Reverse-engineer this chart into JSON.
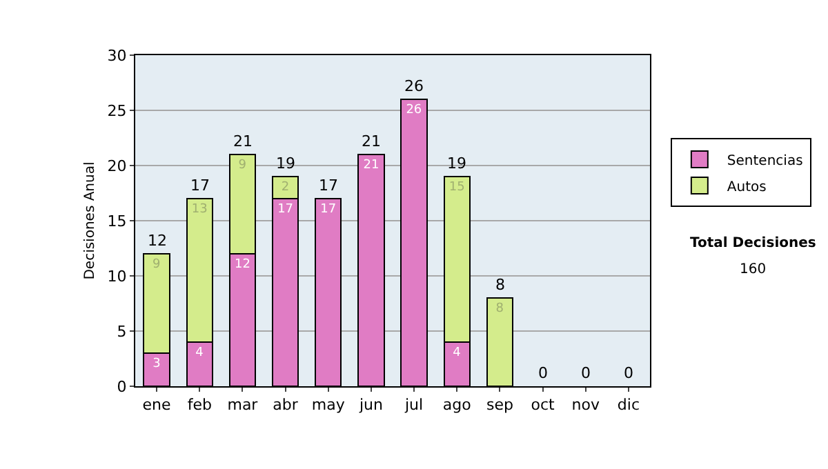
{
  "chart_data": {
    "type": "bar",
    "stacked": true,
    "ylabel": "Decisiones Anual",
    "categories": [
      "ene",
      "feb",
      "mar",
      "abr",
      "may",
      "jun",
      "jul",
      "ago",
      "sep",
      "oct",
      "nov",
      "dic"
    ],
    "series": [
      {
        "name": "Sentencias",
        "color": "#e07cc4",
        "values": [
          3,
          4,
          12,
          17,
          17,
          21,
          26,
          4,
          0,
          0,
          0,
          0
        ],
        "value_labels": [
          "3",
          "4",
          "12",
          "17",
          "17",
          "21",
          "26",
          "4",
          null,
          null,
          null,
          null
        ]
      },
      {
        "name": "Autos",
        "color": "#d4ec8c",
        "values": [
          9,
          13,
          9,
          2,
          0,
          0,
          0,
          15,
          8,
          0,
          0,
          0
        ],
        "value_labels": [
          "9",
          "13",
          "9",
          "2",
          null,
          null,
          null,
          "15",
          "8",
          null,
          null,
          null
        ]
      }
    ],
    "totals": [
      "12",
      "17",
      "21",
      "19",
      "17",
      "21",
      "26",
      "19",
      "8",
      "0",
      "0",
      "0"
    ],
    "ylim": [
      0,
      30
    ],
    "yticks": [
      0,
      5,
      10,
      15,
      20,
      25,
      30
    ],
    "grid": "y",
    "legend": "right",
    "annotations": [
      "Total Decisiones",
      "160"
    ]
  }
}
